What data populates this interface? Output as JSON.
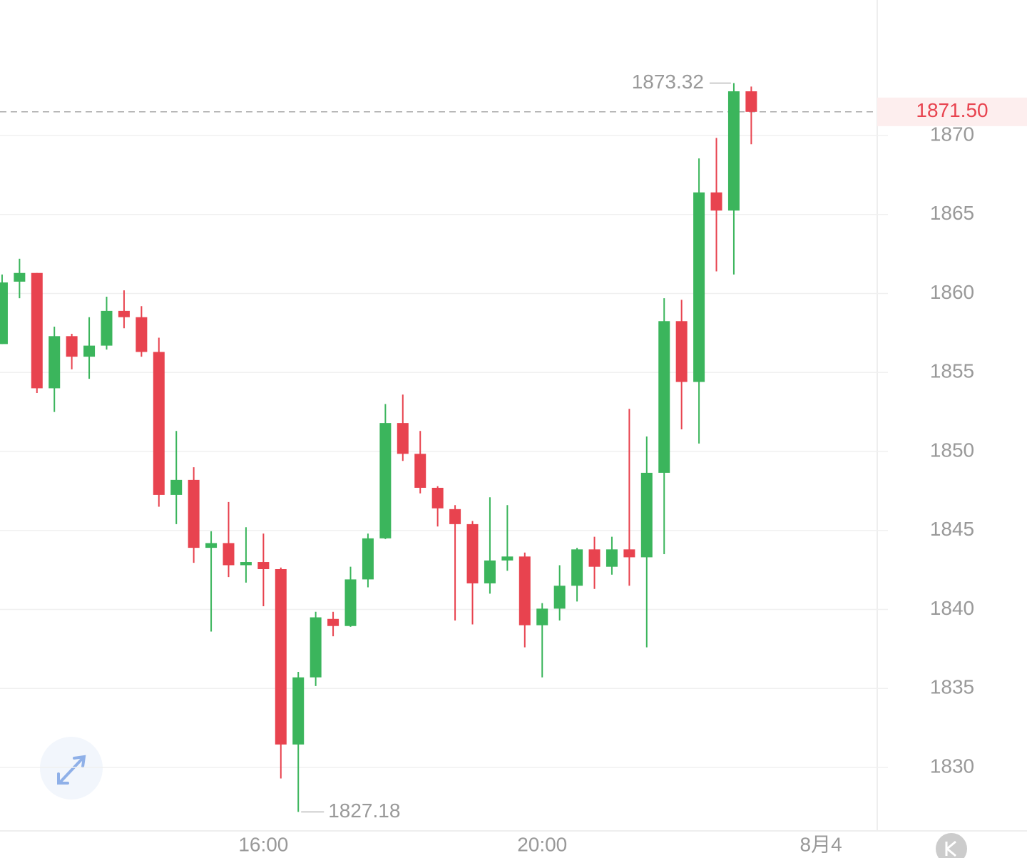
{
  "chart_data": {
    "type": "candlestick",
    "up_color": "#3bb55c",
    "down_color": "#e8434f",
    "x": [
      0,
      1,
      2,
      3,
      4,
      5,
      6,
      7,
      8,
      9,
      10,
      11,
      12,
      13,
      14,
      15,
      16,
      17,
      18,
      19,
      20,
      21,
      22,
      23,
      24,
      25,
      26,
      27,
      28,
      29,
      30,
      31,
      32,
      33,
      34,
      35,
      36,
      37,
      38,
      39,
      40,
      41,
      42,
      43
    ],
    "open": [
      1856.8,
      1860.75,
      1861.3,
      1854.0,
      1857.3,
      1856.0,
      1856.7,
      1858.9,
      1858.5,
      1856.3,
      1847.25,
      1848.2,
      1843.9,
      1844.2,
      1842.8,
      1843.0,
      1842.55,
      1831.45,
      1835.7,
      1839.4,
      1838.95,
      1841.9,
      1844.5,
      1851.8,
      1849.85,
      1847.7,
      1846.35,
      1845.4,
      1841.65,
      1843.1,
      1843.35,
      1839.0,
      1840.05,
      1841.5,
      1843.8,
      1842.7,
      1843.8,
      1843.3,
      1848.65,
      1858.25,
      1854.4,
      1866.4,
      1865.25,
      1872.8
    ],
    "high": [
      1861.2,
      1862.2,
      1861.3,
      1857.9,
      1857.45,
      1858.5,
      1859.8,
      1860.2,
      1859.2,
      1857.2,
      1851.3,
      1849.0,
      1844.95,
      1846.8,
      1845.2,
      1844.8,
      1842.65,
      1836.05,
      1839.85,
      1839.85,
      1842.7,
      1844.8,
      1853.0,
      1853.6,
      1851.3,
      1847.8,
      1846.6,
      1845.6,
      1847.1,
      1846.6,
      1843.6,
      1840.4,
      1842.8,
      1843.9,
      1844.6,
      1844.6,
      1852.7,
      1850.95,
      1859.7,
      1859.6,
      1868.55,
      1869.85,
      1873.32,
      1873.1
    ],
    "low": [
      1856.8,
      1859.7,
      1853.7,
      1852.5,
      1855.2,
      1854.6,
      1856.45,
      1857.8,
      1856.0,
      1846.5,
      1845.4,
      1842.95,
      1838.6,
      1842.05,
      1841.7,
      1840.2,
      1829.3,
      1827.18,
      1835.15,
      1838.3,
      1838.9,
      1841.4,
      1844.45,
      1849.4,
      1847.35,
      1845.25,
      1839.3,
      1839.05,
      1841.0,
      1842.45,
      1837.6,
      1835.7,
      1839.3,
      1840.5,
      1841.3,
      1842.2,
      1841.5,
      1837.6,
      1843.5,
      1851.4,
      1850.5,
      1861.4,
      1861.2,
      1869.45
    ],
    "close": [
      1860.7,
      1861.3,
      1854.0,
      1857.3,
      1856.0,
      1856.7,
      1858.9,
      1858.5,
      1856.3,
      1847.25,
      1848.2,
      1843.9,
      1844.2,
      1842.8,
      1843.0,
      1842.55,
      1831.45,
      1835.7,
      1839.5,
      1838.95,
      1841.9,
      1844.5,
      1851.8,
      1849.85,
      1847.7,
      1846.4,
      1845.4,
      1841.65,
      1843.1,
      1843.35,
      1839.0,
      1840.05,
      1841.5,
      1843.8,
      1842.7,
      1843.8,
      1843.3,
      1848.65,
      1858.25,
      1854.4,
      1866.4,
      1865.25,
      1872.8,
      1871.5
    ],
    "xlim": [
      -0.12,
      50.23
    ],
    "xticks": [
      {
        "value": 15,
        "label": "16:00"
      },
      {
        "value": 31,
        "label": "20:00"
      },
      {
        "value": 47,
        "label": "8月4"
      }
    ],
    "ylim": [
      1825.98,
      1878.58
    ],
    "yticks": [
      1830,
      1835,
      1840,
      1845,
      1850,
      1855,
      1860,
      1865,
      1870
    ],
    "grid": true,
    "high_label": 1873.32,
    "high_index": 42,
    "low_label": 1827.18,
    "low_index": 17,
    "last_price": {
      "value": 1871.5,
      "label": "1871.50"
    }
  }
}
